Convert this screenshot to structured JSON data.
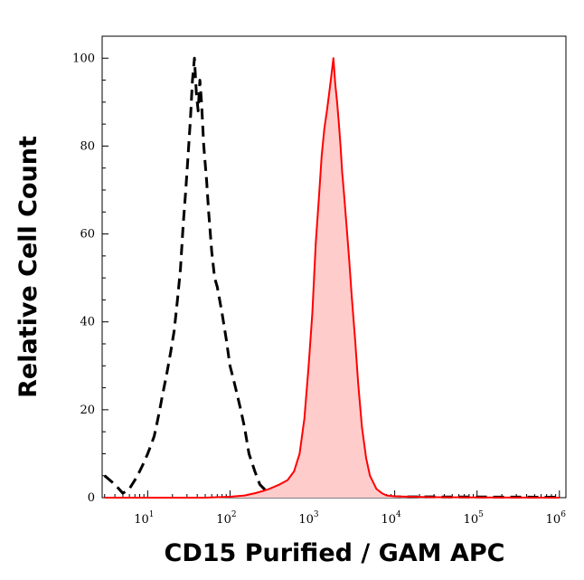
{
  "chart_data": {
    "type": "area",
    "title": "",
    "xlabel": "CD15 Purified / GAM APC",
    "ylabel": "Relative Cell Count",
    "x_scale": "log",
    "xlim": [
      2.8,
      1200000
    ],
    "ylim": [
      0,
      105
    ],
    "grid": false,
    "x_ticks": [
      {
        "value": 10,
        "base": "10",
        "exp": "1"
      },
      {
        "value": 100,
        "base": "10",
        "exp": "2"
      },
      {
        "value": 1000,
        "base": "10",
        "exp": "3"
      },
      {
        "value": 10000,
        "base": "10",
        "exp": "4"
      },
      {
        "value": 100000,
        "base": "10",
        "exp": "5"
      },
      {
        "value": 1000000,
        "base": "10",
        "exp": "6"
      }
    ],
    "y_ticks": [
      0,
      20,
      40,
      60,
      80,
      100
    ],
    "colors": {
      "isotype": "#000000",
      "stained_line": "#ff0000",
      "stained_fill": "#ffcccc"
    },
    "series": [
      {
        "style": "dashed",
        "x": [
          3,
          4,
          5,
          6,
          7,
          8,
          9,
          10,
          11,
          12,
          13,
          14,
          15,
          17,
          19,
          21,
          23,
          25,
          27,
          29,
          31,
          33,
          35,
          37,
          39,
          41,
          43,
          45,
          48,
          52,
          55,
          60,
          65,
          70,
          80,
          90,
          100,
          110,
          120,
          135,
          150,
          170,
          200,
          230,
          260,
          300,
          400,
          600,
          1000,
          2000,
          5000,
          1000000
        ],
        "y": [
          5,
          3,
          1,
          2,
          4,
          6,
          8,
          10,
          12,
          14,
          17,
          20,
          23,
          28,
          33,
          38,
          45,
          52,
          62,
          70,
          78,
          86,
          95,
          100,
          92,
          88,
          95,
          90,
          80,
          72,
          65,
          56,
          50,
          48,
          42,
          36,
          30,
          27,
          24,
          20,
          16,
          10,
          6,
          3,
          2,
          1,
          0.7,
          0.5,
          0.4,
          0.3,
          0.2,
          0.1
        ]
      },
      {
        "style": "filled",
        "x": [
          3,
          10,
          50,
          100,
          150,
          200,
          250,
          300,
          400,
          500,
          600,
          700,
          800,
          900,
          1000,
          1100,
          1200,
          1300,
          1400,
          1500,
          1600,
          1700,
          1800,
          1900,
          2000,
          2100,
          2200,
          2300,
          2400,
          2600,
          2800,
          3000,
          3300,
          3600,
          4000,
          4500,
          5000,
          6000,
          7000,
          8000,
          10000,
          15000,
          30000,
          100000,
          1000000
        ],
        "y": [
          0,
          0,
          0,
          0.2,
          0.5,
          1,
          1.5,
          2,
          3,
          4,
          6,
          10,
          18,
          30,
          42,
          58,
          68,
          78,
          84,
          88,
          92,
          96,
          100,
          94,
          90,
          85,
          80,
          74,
          70,
          62,
          54,
          46,
          36,
          26,
          16,
          9,
          5,
          2,
          1,
          0.5,
          0.3,
          0.2,
          0.1,
          0.05,
          0
        ]
      }
    ]
  }
}
